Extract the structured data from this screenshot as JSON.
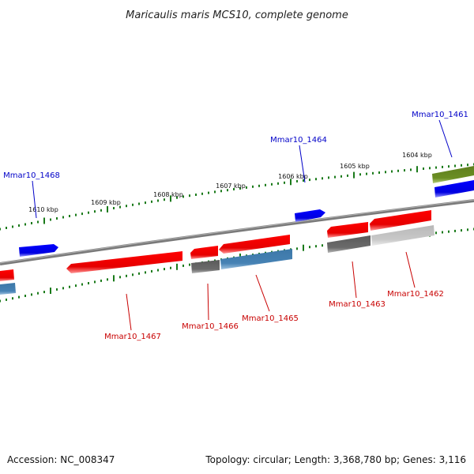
{
  "title": "Maricaulis maris MCS10, complete genome",
  "footer": {
    "accession": "Accession: NC_008347",
    "summary": "Topology: circular; Length: 3,368,780 bp; Genes: 3,116"
  },
  "colors": {
    "backbone": "#808080",
    "tick": "#1a7a1a",
    "forward_label": "#0000c8",
    "reverse_label": "#c80000",
    "red": "#ff0000",
    "blue": "#0000ff",
    "grey": "#6b6b6b",
    "lightgrey": "#c8c8c8",
    "steelblue": "#4682b4",
    "olive": "#6b8e23"
  },
  "ticks": [
    {
      "label": "1610 kbp"
    },
    {
      "label": "1609 kbp"
    },
    {
      "label": "1608 kbp"
    },
    {
      "label": "1607 kbp"
    },
    {
      "label": "1606 kbp"
    },
    {
      "label": "1605 kbp"
    },
    {
      "label": "1604 kbp"
    }
  ],
  "gene_labels": [
    {
      "text": "Mmar10_1468",
      "strand": "forward"
    },
    {
      "text": "Mmar10_1464",
      "strand": "forward"
    },
    {
      "text": "Mmar10_1461",
      "strand": "forward"
    },
    {
      "text": "Mmar10_1467",
      "strand": "reverse"
    },
    {
      "text": "Mmar10_1466",
      "strand": "reverse"
    },
    {
      "text": "Mmar10_1465",
      "strand": "reverse"
    },
    {
      "text": "Mmar10_1463",
      "strand": "reverse"
    },
    {
      "text": "Mmar10_1462",
      "strand": "reverse"
    }
  ]
}
